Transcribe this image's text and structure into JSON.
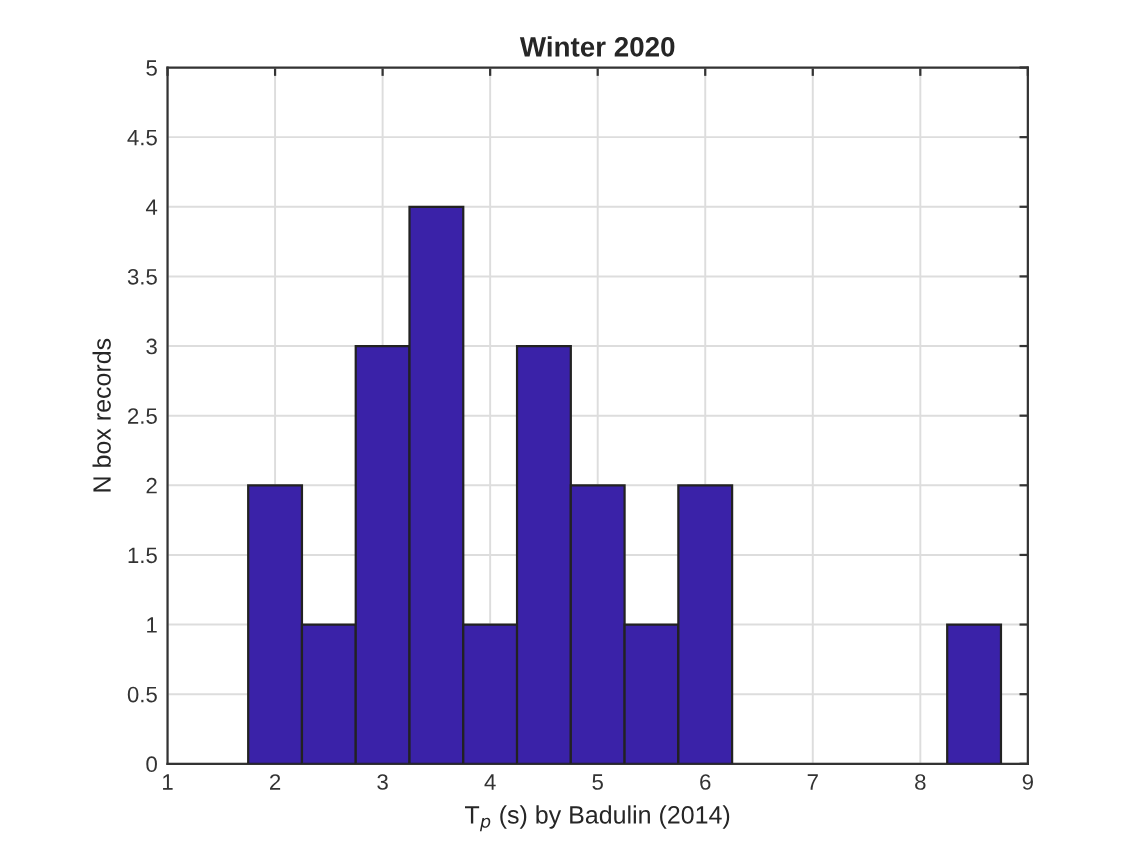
{
  "chart_data": {
    "type": "histogram",
    "title": "Winter 2020",
    "xlabel": "T$_{p}$ (s) by Badulin (2014)",
    "ylabel": "N box records",
    "bins": [
      1.75,
      2.25,
      2.75,
      3.25,
      3.75,
      4.25,
      4.75,
      5.25,
      5.75,
      6.25,
      6.75,
      7.25,
      7.75,
      8.25,
      8.75
    ],
    "values": [
      2,
      1,
      3,
      4,
      1,
      3,
      2,
      1,
      2,
      0,
      0,
      0,
      0,
      1
    ],
    "color": "#3a22a8",
    "xlim": [
      1,
      9
    ],
    "xticks": [
      1,
      2,
      3,
      4,
      5,
      6,
      7,
      8,
      9
    ],
    "ylim": [
      0,
      5
    ],
    "yticks": [
      0,
      0.5,
      1,
      1.5,
      2,
      2.5,
      3,
      3.5,
      4,
      4.5,
      5
    ],
    "grid": true,
    "legend": false
  }
}
